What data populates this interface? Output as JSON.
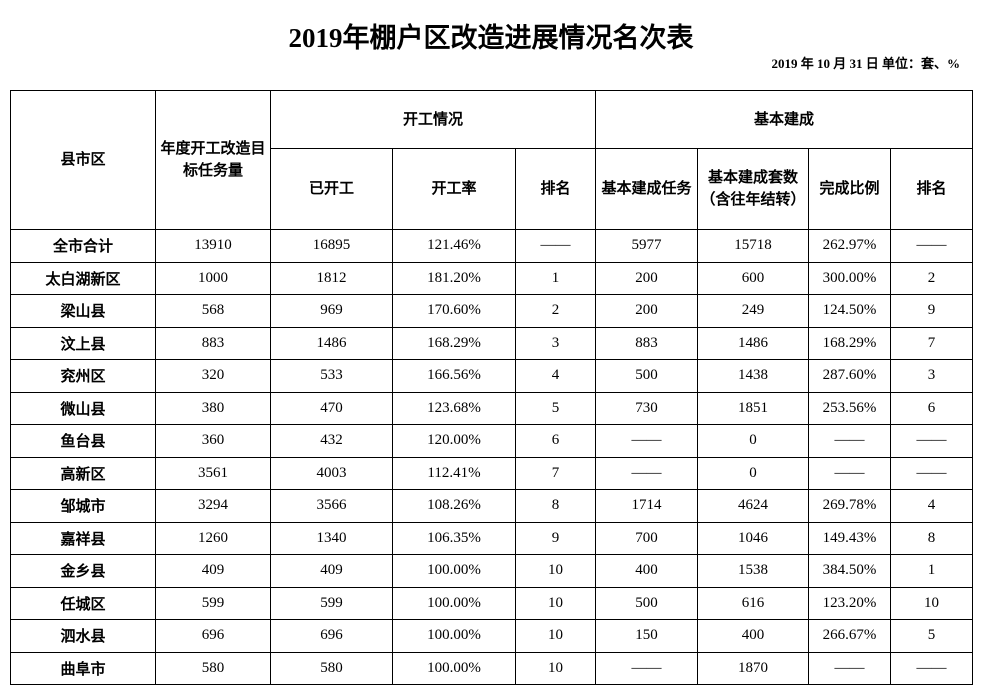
{
  "header": {
    "title": "2019年棚户区改造进展情况名次表",
    "subtitle": "2019 年 10 月 31 日    单位：套、%"
  },
  "table": {
    "group_headers": [
      "县市区",
      "年度开工改造目标任务量",
      "开工情况",
      "基本建成"
    ],
    "sub_headers": [
      "已开工",
      "开工率",
      "排名",
      "基本建成任务",
      "基本建成套数（含往年结转）",
      "完成比例",
      "排名"
    ],
    "rows": [
      [
        "全市合计",
        "13910",
        "16895",
        "121.46%",
        "——",
        "5977",
        "15718",
        "262.97%",
        "——"
      ],
      [
        "太白湖新区",
        "1000",
        "1812",
        "181.20%",
        "1",
        "200",
        "600",
        "300.00%",
        "2"
      ],
      [
        "梁山县",
        "568",
        "969",
        "170.60%",
        "2",
        "200",
        "249",
        "124.50%",
        "9"
      ],
      [
        "汶上县",
        "883",
        "1486",
        "168.29%",
        "3",
        "883",
        "1486",
        "168.29%",
        "7"
      ],
      [
        "兖州区",
        "320",
        "533",
        "166.56%",
        "4",
        "500",
        "1438",
        "287.60%",
        "3"
      ],
      [
        "微山县",
        "380",
        "470",
        "123.68%",
        "5",
        "730",
        "1851",
        "253.56%",
        "6"
      ],
      [
        "鱼台县",
        "360",
        "432",
        "120.00%",
        "6",
        "——",
        "0",
        "——",
        "——"
      ],
      [
        "高新区",
        "3561",
        "4003",
        "112.41%",
        "7",
        "——",
        "0",
        "——",
        "——"
      ],
      [
        "邹城市",
        "3294",
        "3566",
        "108.26%",
        "8",
        "1714",
        "4624",
        "269.78%",
        "4"
      ],
      [
        "嘉祥县",
        "1260",
        "1340",
        "106.35%",
        "9",
        "700",
        "1046",
        "149.43%",
        "8"
      ],
      [
        "金乡县",
        "409",
        "409",
        "100.00%",
        "10",
        "400",
        "1538",
        "384.50%",
        "1"
      ],
      [
        "任城区",
        "599",
        "599",
        "100.00%",
        "10",
        "500",
        "616",
        "123.20%",
        "10"
      ],
      [
        "泗水县",
        "696",
        "696",
        "100.00%",
        "10",
        "150",
        "400",
        "266.67%",
        "5"
      ],
      [
        "曲阜市",
        "580",
        "580",
        "100.00%",
        "10",
        "——",
        "1870",
        "——",
        "——"
      ]
    ]
  }
}
